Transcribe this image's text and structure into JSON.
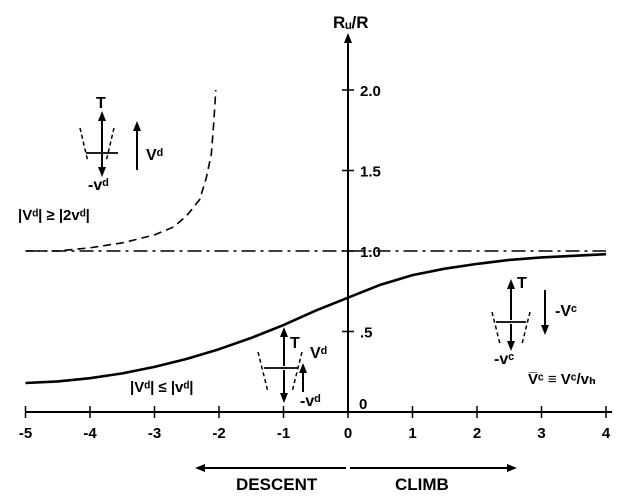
{
  "chart_data": {
    "type": "line",
    "ylabel": "Rᵤ/R",
    "xlim": [
      -5,
      4
    ],
    "ylim": [
      0,
      2.15
    ],
    "x_ticks": [
      -5,
      -4,
      -3,
      -2,
      -1,
      0,
      1,
      2,
      3,
      4
    ],
    "x_tick_labels": [
      "-5",
      "-4",
      "-3",
      "-2",
      "-1",
      "0",
      "1",
      "2",
      "3",
      "4"
    ],
    "y_ticks": [
      0.5,
      1.0,
      1.5,
      2.0
    ],
    "y_tick_labels": [
      ".5",
      "1.0",
      "1.5",
      "2.0"
    ],
    "y_zero_label": "0",
    "grid": false,
    "series": [
      {
        "style": "solid",
        "x": [
          -5,
          -4.5,
          -4,
          -3.5,
          -3,
          -2.5,
          -2,
          -1.5,
          -1,
          -0.5,
          0,
          0.5,
          1,
          1.5,
          2,
          2.5,
          3,
          3.5,
          4
        ],
        "y": [
          0.18,
          0.19,
          0.21,
          0.24,
          0.28,
          0.33,
          0.39,
          0.46,
          0.54,
          0.63,
          0.71,
          0.79,
          0.85,
          0.89,
          0.92,
          0.945,
          0.96,
          0.97,
          0.98
        ]
      },
      {
        "style": "dashed",
        "x": [
          -5,
          -4.5,
          -4,
          -3.5,
          -3,
          -2.7,
          -2.5,
          -2.3,
          -2.2,
          -2.12,
          -2.08,
          -2.05
        ],
        "y": [
          1.0,
          1.0,
          1.02,
          1.05,
          1.1,
          1.15,
          1.22,
          1.32,
          1.45,
          1.6,
          1.8,
          2.0
        ]
      },
      {
        "style": "dash-dot",
        "x": [
          -5,
          4
        ],
        "y": [
          1.0,
          1.0
        ]
      }
    ],
    "annotations": {
      "descent": "DESCENT",
      "climb": "CLIMB",
      "upper_condition": "|Vᵈ| ≥ |2vᵈ|",
      "lower_condition": "|Vᵈ| ≤ |vᵈ|",
      "xaxis_definition": "V̅ᶜ ≡ Vᶜ/vₕ"
    },
    "diagram_labels": {
      "thrust": "T",
      "induced_descent": "-vᵈ",
      "descent_velocity": "Vᵈ",
      "climb_velocity": "-Vᶜ",
      "induced_climb": "-vᶜ"
    }
  }
}
